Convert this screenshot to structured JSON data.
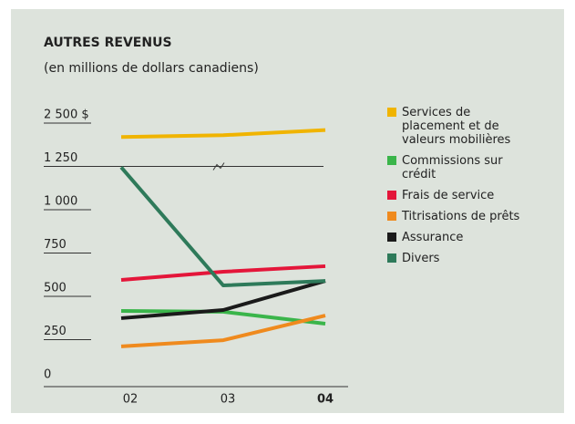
{
  "chart_data": {
    "type": "line",
    "title": "AUTRES REVENUS",
    "subtitle": "(en millions de dollars canadiens)",
    "categories": [
      "02",
      "03",
      "04"
    ],
    "emphasized_category": 2,
    "ylim": [
      0,
      2500
    ],
    "ybreak": [
      1250,
      2250
    ],
    "yticks": [
      0,
      250,
      500,
      750,
      {
        "value": 1000,
        "label": "1 000"
      },
      {
        "value": 1250,
        "label": "1 250"
      },
      {
        "value": 2500,
        "label": "2 500 $"
      }
    ],
    "series": [
      {
        "name": "Services de placement et de valeurs mobilières",
        "color": "#f0b400",
        "values": [
          2420,
          2430,
          2460
        ]
      },
      {
        "name": "Commissions sur crédit",
        "color": "#3ab54a",
        "values": [
          416,
          411,
          342
        ]
      },
      {
        "name": "Frais de service",
        "color": "#e4163a",
        "values": [
          595,
          642,
          674
        ]
      },
      {
        "name": "Titrisations de prêts",
        "color": "#ef8a1e",
        "values": [
          211,
          247,
          389
        ]
      },
      {
        "name": "Assurance",
        "color": "#1a1a1a",
        "values": [
          374,
          421,
          589
        ]
      },
      {
        "name": "Divers",
        "color": "#2e7a5a",
        "values": [
          1245,
          563,
          589
        ]
      }
    ]
  }
}
